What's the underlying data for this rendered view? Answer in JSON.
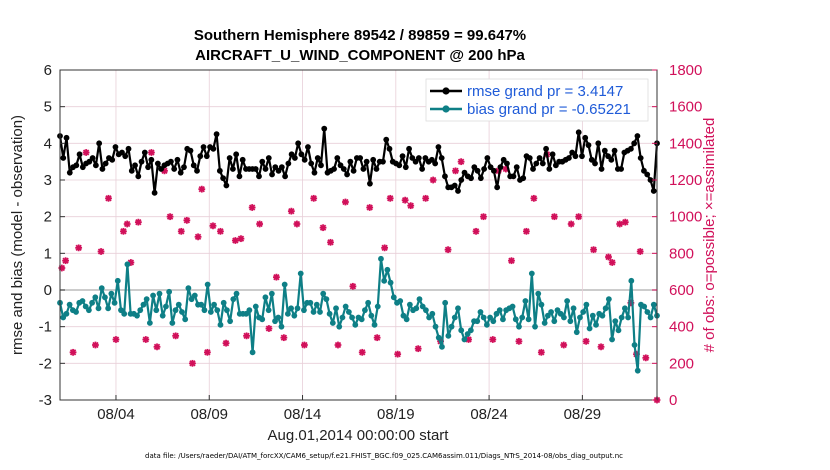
{
  "chart_data": {
    "type": "line",
    "title_line1": "Southern Hemisphere 89542 / 89859 = 99.647%",
    "title_line2": "AIRCRAFT_U_WIND_COMPONENT @ 200 hPa",
    "ylabel": "rmse and bias (model - observation)",
    "ylabel_right": "# of obs: o=possible; ×=assimilated",
    "xlabel": "Aug.01,2014 00:00:00 start",
    "footer": "data file: /Users/raeder/DAI/ATM_forcXX/CAM6_setup/f.e21.FHIST_BGC.f09_025.CAM6assim.011/Diags_NTrS_2014-08/obs_diag_output.nc",
    "ylim": [
      -3,
      6
    ],
    "ylim_right": [
      0,
      1800
    ],
    "yticks": [
      "-3",
      "-2",
      "-1",
      "0",
      "1",
      "2",
      "3",
      "4",
      "5",
      "6"
    ],
    "yticks_right": [
      "0",
      "200",
      "400",
      "600",
      "800",
      "1000",
      "1200",
      "1400",
      "1600",
      "1800"
    ],
    "xlim": [
      1,
      33
    ],
    "xticks": [
      {
        "pos": 4,
        "label": "08/04"
      },
      {
        "pos": 9,
        "label": "08/09"
      },
      {
        "pos": 14,
        "label": "08/14"
      },
      {
        "pos": 19,
        "label": "08/19"
      },
      {
        "pos": 24,
        "label": "08/24"
      },
      {
        "pos": 29,
        "label": "08/29"
      }
    ],
    "colors": {
      "rmse": "#000000",
      "bias": "#0e7f86",
      "obs": "#d1105a",
      "legend_text": "#1f5bd8",
      "grid": "#e8cfd8",
      "zero": "#bbbbbb"
    },
    "legend": {
      "placement": "top-right",
      "entries": [
        "rmse grand pr = 3.4147",
        "bias grand pr = -0.65221"
      ]
    },
    "series": [
      {
        "name": "rmse grand pr = 3.4147",
        "marker": "circle",
        "values": [
          4.2,
          3.6,
          4.15,
          3.2,
          3.35,
          3.4,
          3.7,
          3.35,
          3.45,
          3.5,
          3.6,
          3.4,
          4.0,
          3.3,
          3.45,
          3.6,
          3.55,
          3.9,
          3.7,
          3.75,
          3.65,
          3.85,
          3.25,
          3.4,
          3.1,
          3.5,
          3.75,
          3.35,
          3.55,
          2.65,
          3.45,
          3.3,
          3.4,
          3.45,
          3.5,
          3.3,
          3.55,
          3.2,
          3.35,
          3.85,
          3.8,
          3.4,
          3.25,
          3.65,
          3.9,
          3.65,
          3.9,
          3.85,
          4.25,
          3.25,
          3.05,
          2.85,
          3.6,
          3.3,
          3.7,
          3.1,
          3.55,
          3.3,
          3.3,
          3.3,
          3.3,
          3.1,
          3.5,
          3.3,
          3.6,
          3.15,
          3.35,
          3.25,
          3.35,
          3.1,
          3.45,
          3.7,
          3.6,
          4.0,
          3.7,
          3.55,
          3.9,
          3.45,
          3.2,
          3.6,
          3.4,
          4.4,
          3.2,
          3.25,
          3.3,
          3.6,
          3.4,
          3.3,
          3.15,
          3.5,
          3.25,
          3.6,
          3.6,
          3.3,
          3.5,
          2.9,
          3.55,
          3.3,
          3.5,
          3.5,
          4.1,
          3.85,
          3.5,
          3.45,
          3.4,
          3.65,
          3.35,
          3.85,
          3.6,
          3.5,
          3.6,
          3.3,
          3.6,
          3.5,
          3.55,
          3.45,
          3.9,
          3.6,
          3.1,
          2.8,
          2.8,
          2.85,
          2.7,
          3.0,
          3.2,
          3.1,
          3.05,
          3.35,
          3.25,
          3.05,
          3.3,
          3.6,
          3.35,
          3.25,
          2.8,
          3.35,
          3.55,
          3.45,
          3.1,
          3.1,
          3.35,
          3.0,
          3.05,
          3.65,
          3.6,
          3.3,
          3.45,
          3.6,
          3.45,
          3.85,
          3.3,
          3.7,
          3.4,
          3.5,
          3.5,
          3.55,
          3.6,
          3.75,
          3.65,
          4.3,
          3.65,
          4.15,
          3.95,
          3.55,
          3.45,
          4.0,
          3.3,
          3.8,
          3.65,
          3.55,
          3.8,
          3.3,
          3.3,
          3.75,
          3.8,
          3.85,
          4.0,
          4.2,
          3.6,
          3.25,
          3.15,
          3.0,
          2.7,
          4.0
        ]
      },
      {
        "name": "bias grand pr = -0.65221",
        "marker": "circle",
        "values": [
          -0.35,
          -0.75,
          -0.65,
          -0.4,
          -0.55,
          -0.6,
          -0.35,
          -0.3,
          -0.45,
          -0.55,
          -0.35,
          -0.2,
          -0.5,
          0.05,
          -0.2,
          -0.5,
          -0.1,
          -0.35,
          0.25,
          -0.55,
          -0.65,
          0.7,
          -0.65,
          -0.65,
          -0.7,
          -0.55,
          -0.4,
          -0.25,
          -0.9,
          -0.15,
          -0.55,
          -0.1,
          -0.7,
          -0.45,
          -0.05,
          -0.9,
          -0.55,
          -0.4,
          -0.6,
          -0.8,
          0.05,
          -0.25,
          -0.15,
          -0.4,
          -0.4,
          -0.55,
          0.15,
          -0.6,
          -0.4,
          -0.55,
          -0.95,
          -0.35,
          -0.55,
          -0.85,
          -0.25,
          -0.1,
          -0.65,
          -0.65,
          -0.65,
          -0.55,
          -1.7,
          -0.45,
          -0.75,
          -0.8,
          -0.2,
          -0.55,
          -0.1,
          -0.85,
          -0.75,
          -1.0,
          0.15,
          -0.65,
          -0.5,
          -0.7,
          -0.5,
          0.45,
          -0.55,
          -0.35,
          -0.35,
          -0.6,
          -0.4,
          -0.6,
          -0.1,
          -0.25,
          -0.65,
          -0.9,
          -0.5,
          -1.0,
          -0.75,
          -0.45,
          -0.6,
          -0.75,
          -0.95,
          -0.75,
          -0.8,
          -0.55,
          -0.35,
          -0.7,
          -0.95,
          -0.45,
          0.85,
          0.25,
          0.55,
          0.2,
          -0.2,
          -0.35,
          -0.3,
          -0.7,
          -0.8,
          -0.4,
          -0.55,
          -0.5,
          -0.25,
          -0.45,
          -0.55,
          -0.75,
          -0.65,
          -1.0,
          -1.3,
          -1.55,
          -0.35,
          -1.25,
          -1.0,
          -0.75,
          -0.5,
          -1.1,
          -1.35,
          -1.2,
          -1.1,
          -0.85,
          -0.85,
          -0.6,
          -0.75,
          -0.95,
          -0.75,
          -0.85,
          -0.65,
          -0.55,
          -0.8,
          -0.55,
          -0.5,
          -0.45,
          -0.8,
          -1.0,
          -0.75,
          -0.3,
          -0.8,
          0.45,
          -1.0,
          -0.1,
          -0.4,
          -0.9,
          -0.7,
          -0.6,
          -0.85,
          -0.55,
          -0.65,
          -0.75,
          -0.3,
          -0.85,
          -0.5,
          -1.15,
          -0.75,
          -0.6,
          -0.4,
          -1.05,
          -0.7,
          -0.95,
          -0.65,
          -0.7,
          -0.5,
          -0.25,
          -1.35,
          -0.85,
          -1.1,
          -0.75,
          -0.5,
          -0.75,
          0.25,
          -1.5,
          -2.2,
          -0.4,
          -0.45,
          -0.6,
          -0.75,
          -0.4,
          -0.7
        ]
      },
      {
        "name": "assimilated obs",
        "marker": "asterisk",
        "axis": "right",
        "points": [
          [
            1.1,
            720
          ],
          [
            1.3,
            760
          ],
          [
            1.7,
            260
          ],
          [
            2.0,
            830
          ],
          [
            2.4,
            1350
          ],
          [
            2.9,
            300
          ],
          [
            3.2,
            810
          ],
          [
            3.6,
            1100
          ],
          [
            4.0,
            330
          ],
          [
            4.4,
            920
          ],
          [
            4.6,
            960
          ],
          [
            4.8,
            750
          ],
          [
            5.2,
            970
          ],
          [
            5.6,
            330
          ],
          [
            5.9,
            1350
          ],
          [
            6.2,
            290
          ],
          [
            6.6,
            1250
          ],
          [
            6.9,
            1000
          ],
          [
            7.2,
            350
          ],
          [
            7.5,
            920
          ],
          [
            7.8,
            980
          ],
          [
            8.1,
            200
          ],
          [
            8.4,
            890
          ],
          [
            8.6,
            1150
          ],
          [
            8.9,
            260
          ],
          [
            9.2,
            950
          ],
          [
            9.6,
            920
          ],
          [
            9.9,
            310
          ],
          [
            10.4,
            870
          ],
          [
            10.7,
            880
          ],
          [
            11.0,
            350
          ],
          [
            11.3,
            1050
          ],
          [
            11.7,
            960
          ],
          [
            12.2,
            390
          ],
          [
            12.6,
            670
          ],
          [
            13.0,
            340
          ],
          [
            13.4,
            1030
          ],
          [
            13.7,
            960
          ],
          [
            14.1,
            300
          ],
          [
            14.6,
            1100
          ],
          [
            15.1,
            940
          ],
          [
            15.5,
            860
          ],
          [
            15.9,
            300
          ],
          [
            16.3,
            1080
          ],
          [
            16.7,
            620
          ],
          [
            17.2,
            260
          ],
          [
            17.6,
            1050
          ],
          [
            18.0,
            340
          ],
          [
            18.4,
            830
          ],
          [
            18.7,
            1100
          ],
          [
            19.1,
            250
          ],
          [
            19.5,
            1090
          ],
          [
            19.8,
            1060
          ],
          [
            20.2,
            280
          ],
          [
            20.6,
            1100
          ],
          [
            21.0,
            1200
          ],
          [
            21.4,
            320
          ],
          [
            21.8,
            820
          ],
          [
            22.2,
            1250
          ],
          [
            22.5,
            1300
          ],
          [
            22.9,
            330
          ],
          [
            23.3,
            920
          ],
          [
            23.7,
            1000
          ],
          [
            24.2,
            330
          ],
          [
            24.5,
            1250
          ],
          [
            24.9,
            1260
          ],
          [
            25.2,
            760
          ],
          [
            25.6,
            320
          ],
          [
            26.0,
            920
          ],
          [
            26.4,
            1100
          ],
          [
            26.8,
            260
          ],
          [
            27.1,
            1340
          ],
          [
            27.5,
            1000
          ],
          [
            28.0,
            300
          ],
          [
            28.4,
            960
          ],
          [
            28.8,
            1000
          ],
          [
            29.2,
            320
          ],
          [
            29.6,
            820
          ],
          [
            30.0,
            290
          ],
          [
            30.4,
            780
          ],
          [
            30.6,
            750
          ],
          [
            31.0,
            960
          ],
          [
            31.3,
            970
          ],
          [
            31.6,
            530
          ],
          [
            31.9,
            250
          ],
          [
            32.1,
            810
          ],
          [
            32.4,
            230
          ],
          [
            33.0,
            0
          ]
        ]
      }
    ]
  }
}
